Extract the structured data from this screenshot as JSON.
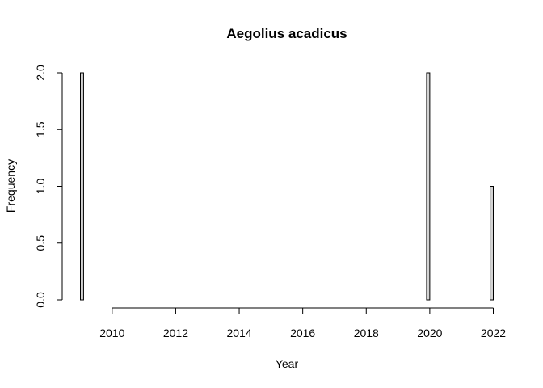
{
  "chart_data": {
    "type": "bar",
    "title": "Aegolius acadicus",
    "xlabel": "Year",
    "ylabel": "Frequency",
    "bin_width": 0.1,
    "x_start": 2009.0,
    "x_end": 2022.0,
    "xlim": [
      2009.0,
      2022.0
    ],
    "ylim": [
      0,
      2
    ],
    "x_ticks": [
      2010,
      2012,
      2014,
      2016,
      2018,
      2020,
      2022
    ],
    "y_ticks": [
      "0.0",
      "0.5",
      "1.0",
      "1.5",
      "2.0"
    ],
    "nonzero_bins": [
      {
        "start": 2009.0,
        "end": 2009.1,
        "value": 2
      },
      {
        "start": 2019.9,
        "end": 2020.0,
        "value": 2
      },
      {
        "start": 2021.9,
        "end": 2022.0,
        "value": 1
      }
    ],
    "other_bins_value": 0
  }
}
